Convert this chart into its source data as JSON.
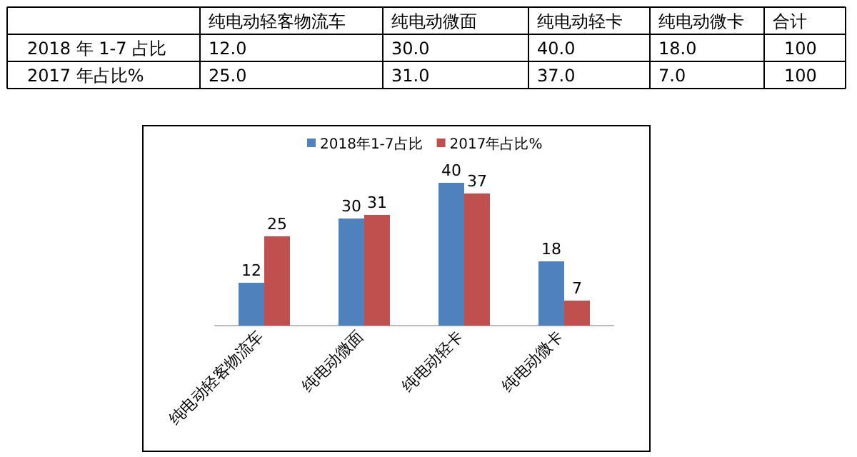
{
  "chart_data": [
    {
      "type": "other",
      "categories": [
        "纯电动轻客物流车",
        "纯电动微面",
        "纯电动轻卡",
        "纯电动微卡",
        "合计"
      ],
      "series": [
        {
          "name": "2018 年 1-7 占比",
          "values": [
            12,
            30,
            40,
            18,
            100
          ],
          "value_labels": [
            "12.0",
            "30.0",
            "40.0",
            "18.0",
            "100"
          ]
        },
        {
          "name": "2017 年占比%",
          "values": [
            25,
            31,
            37,
            7,
            100
          ],
          "value_labels": [
            "25.0",
            "31.0",
            "37.0",
            "7.0",
            "100"
          ]
        }
      ]
    },
    {
      "type": "bar",
      "categories": [
        "纯电动轻客物流车",
        "纯电动微面",
        "纯电动轻卡",
        "纯电动微卡"
      ],
      "series": [
        {
          "name": "2018年1-7占比",
          "color": "#4f81bd",
          "values": [
            12,
            30,
            40,
            18
          ]
        },
        {
          "name": "2017年占比%",
          "color": "#c0504d",
          "values": [
            25,
            31,
            37,
            7
          ]
        }
      ],
      "data_labels": true,
      "legend": "top",
      "grid": false
    }
  ]
}
